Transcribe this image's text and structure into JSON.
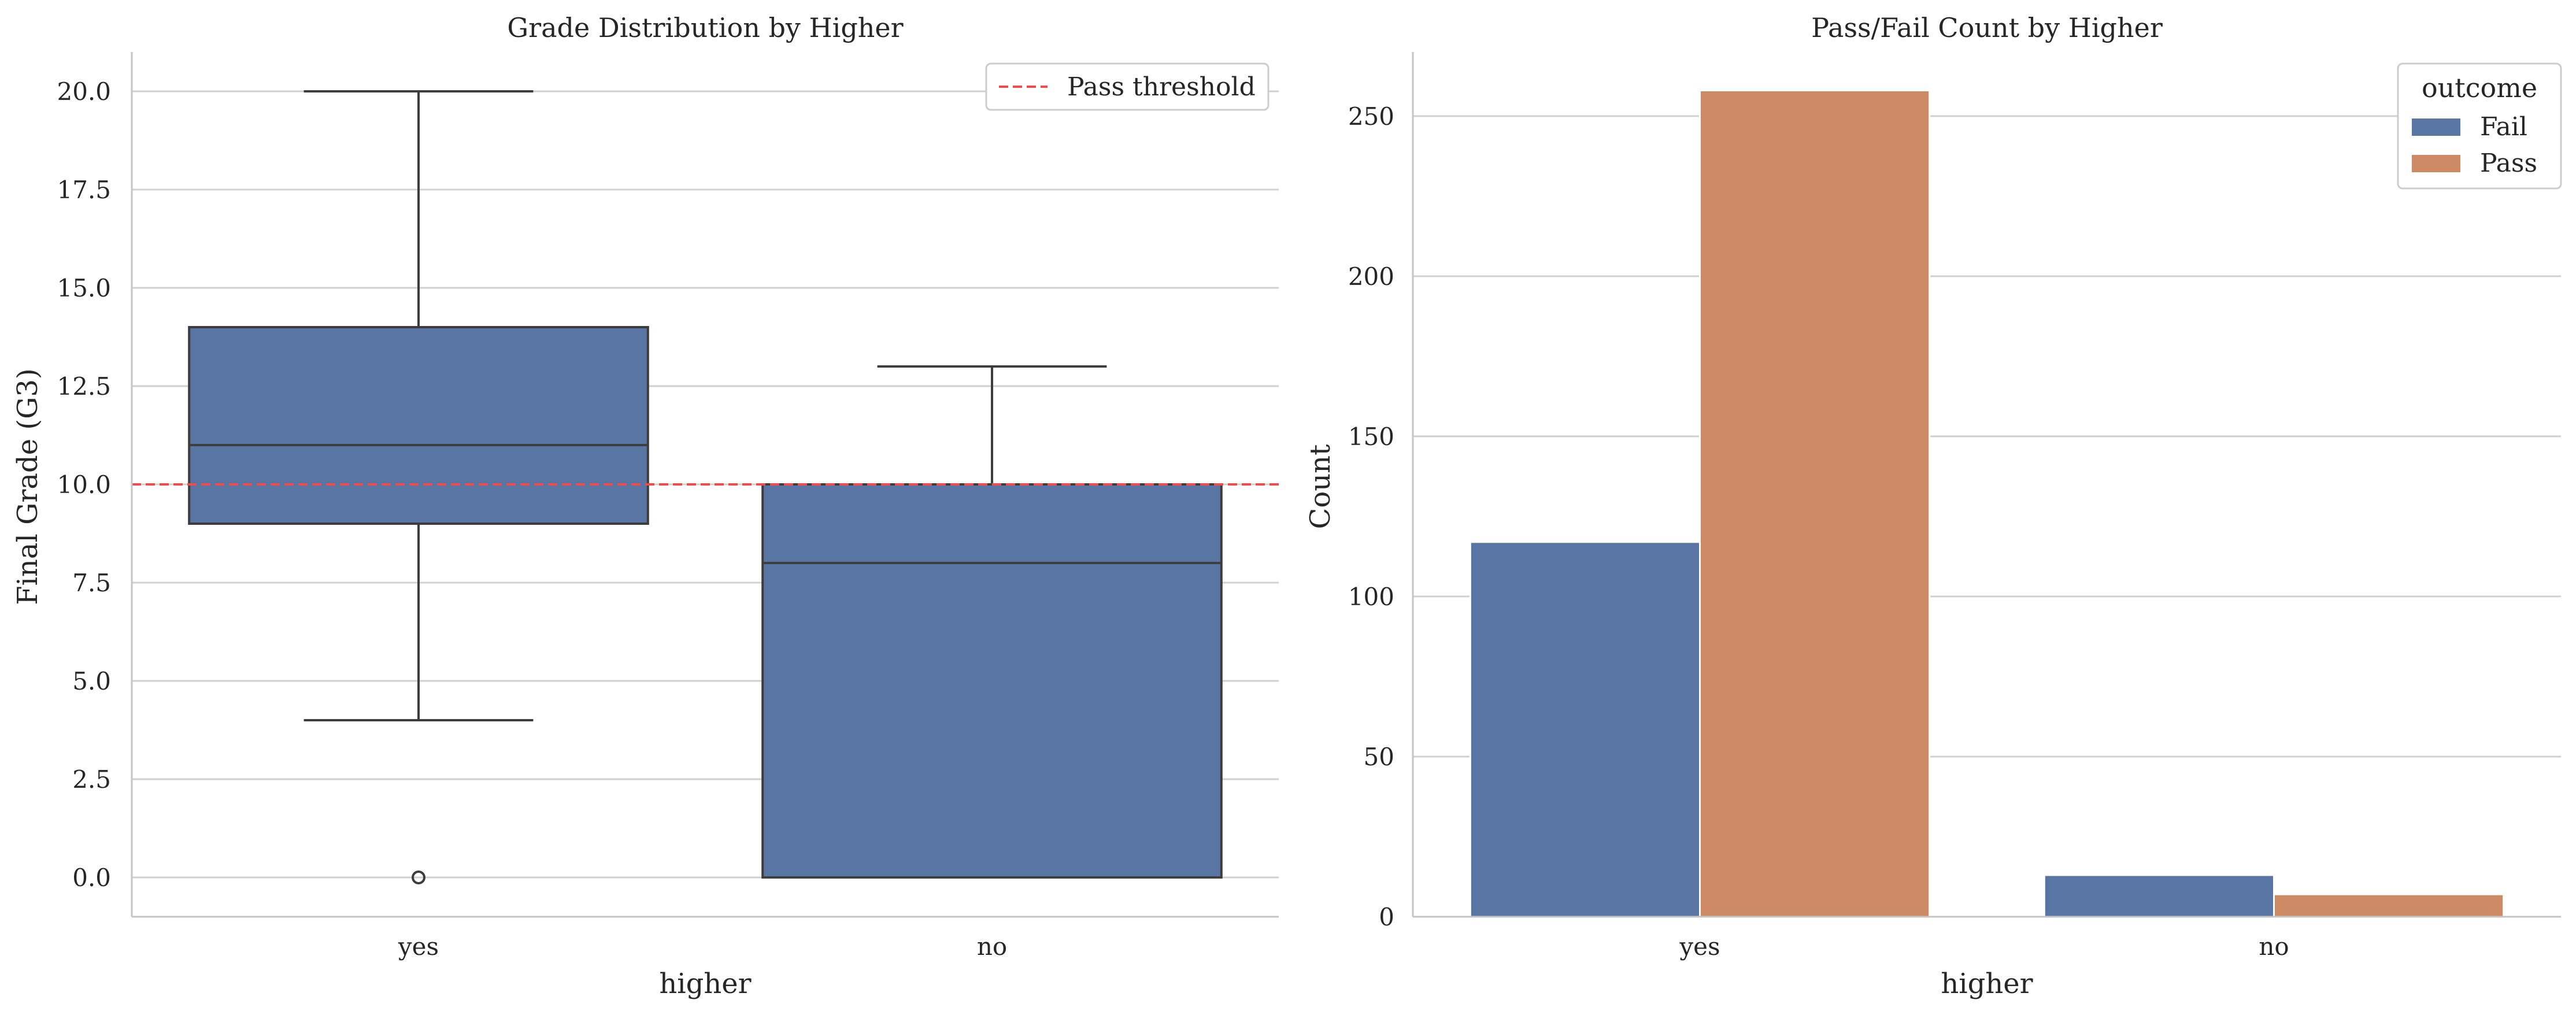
{
  "colors": {
    "blue": "#5975a4",
    "orange": "#cc8963",
    "threshold": "#f24b4b",
    "grid": "#d0d0d0",
    "axis": "#c4c4c4",
    "edge": "#3d3d3d"
  },
  "chart_data": [
    {
      "type": "box",
      "title": "Grade Distribution by Higher",
      "xlabel": "higher",
      "ylabel": "Final Grade (G3)",
      "categories": [
        "yes",
        "no"
      ],
      "ylim": [
        -1,
        21
      ],
      "yticks": [
        0.0,
        2.5,
        5.0,
        7.5,
        10.0,
        12.5,
        15.0,
        17.5,
        20.0
      ],
      "ytick_labels": [
        "0.0",
        "2.5",
        "5.0",
        "7.5",
        "10.0",
        "12.5",
        "15.0",
        "17.5",
        "20.0"
      ],
      "grid": "horizontal",
      "boxes": [
        {
          "category": "yes",
          "whisker_low": 4,
          "q1": 9,
          "median": 11,
          "q3": 14,
          "whisker_high": 20,
          "outliers": [
            0
          ]
        },
        {
          "category": "no",
          "whisker_low": 0,
          "q1": 0,
          "median": 8,
          "q3": 10,
          "whisker_high": 13,
          "outliers": []
        }
      ],
      "threshold": {
        "value": 10,
        "label": "Pass threshold"
      },
      "legend_position": "top-right"
    },
    {
      "type": "bar",
      "title": "Pass/Fail Count by Higher",
      "xlabel": "higher",
      "ylabel": "Count",
      "categories": [
        "yes",
        "no"
      ],
      "ylim": [
        0,
        270
      ],
      "yticks": [
        0,
        50,
        100,
        150,
        200,
        250
      ],
      "ytick_labels": [
        "0",
        "50",
        "100",
        "150",
        "200",
        "250"
      ],
      "grid": "horizontal",
      "legend_title": "outcome",
      "legend_position": "top-right",
      "series": [
        {
          "name": "Fail",
          "values": [
            117,
            13
          ]
        },
        {
          "name": "Pass",
          "values": [
            258,
            7
          ]
        }
      ]
    }
  ]
}
